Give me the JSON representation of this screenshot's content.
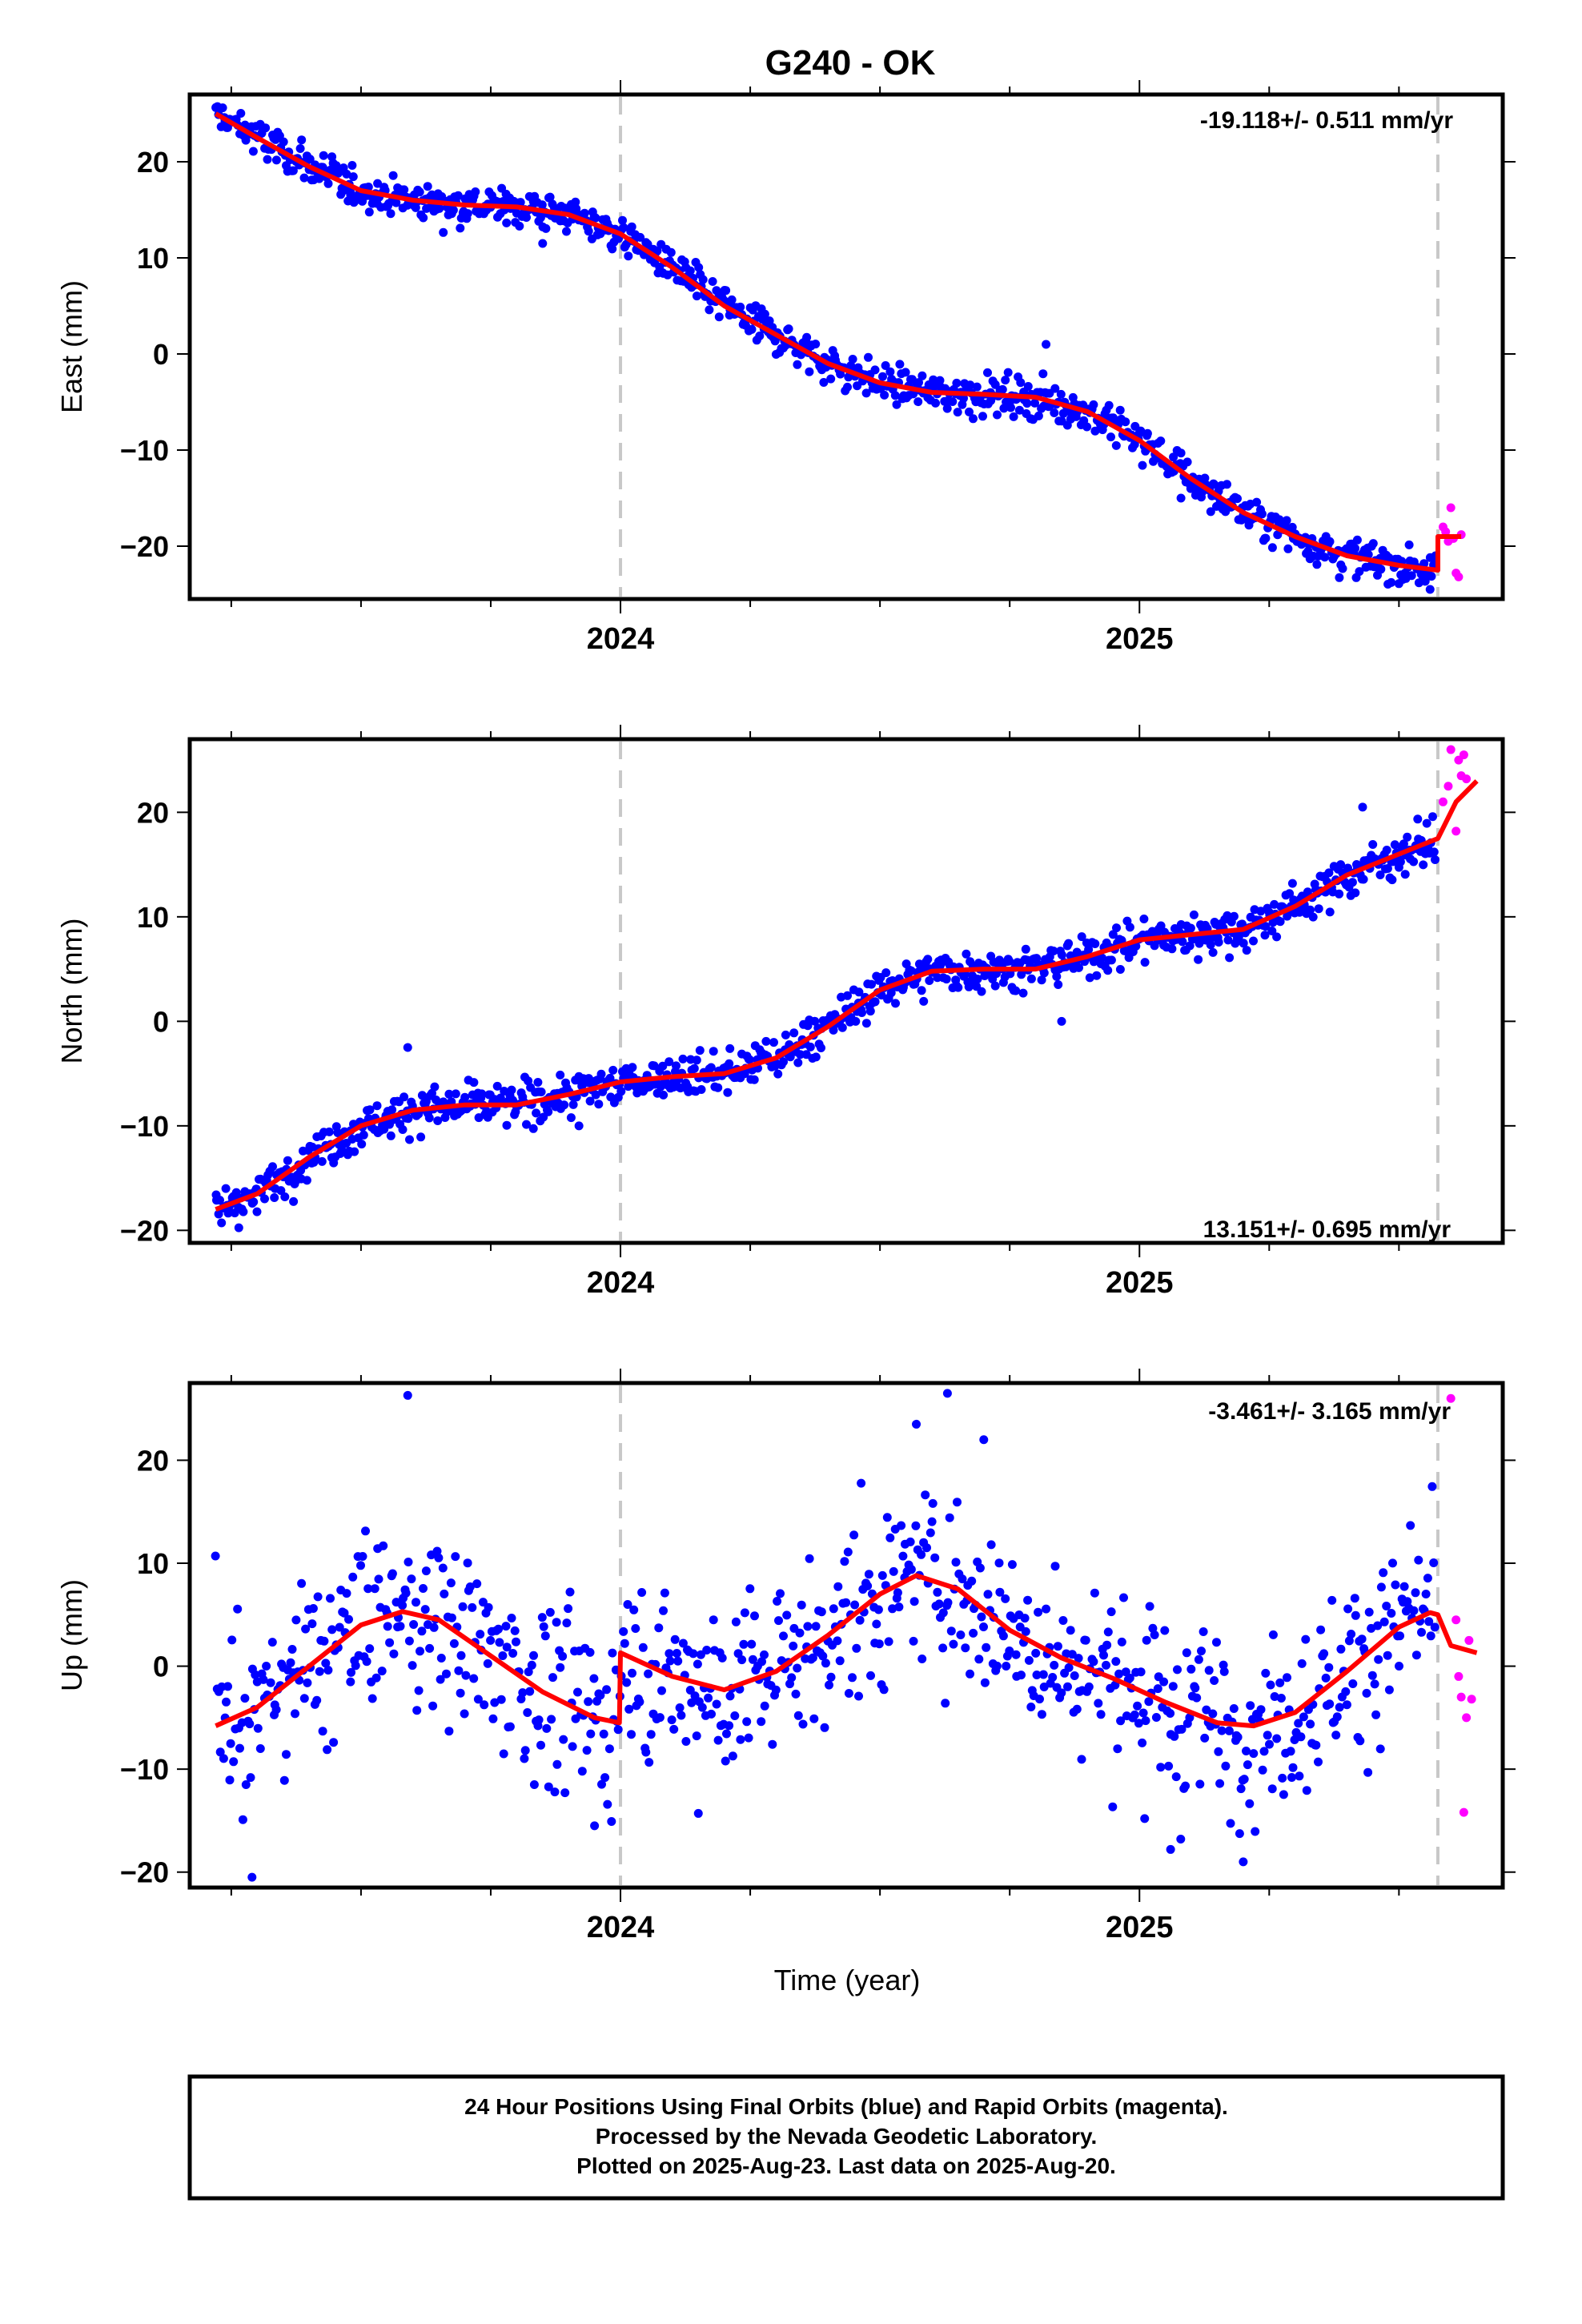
{
  "title": "G240 - OK",
  "xlabel": "Time (year)",
  "footer": {
    "line1": "24 Hour Positions Using Final Orbits (blue) and Rapid Orbits (magenta).",
    "line2": "Processed by the Nevada Geodetic Laboratory.",
    "line3": "Plotted on 2025-Aug-23. Last data on 2025-Aug-20."
  },
  "colors": {
    "final": "#0000ff",
    "rapid": "#ff00ff",
    "model": "#ff0000",
    "marker_line": "#c8c8c8"
  },
  "chart_data": [
    {
      "type": "scatter",
      "panel": "east",
      "ylabel": "East (mm)",
      "rate_label": "-19.118+/- 0.511 mm/yr",
      "xlim": [
        2023.17,
        2025.7
      ],
      "ylim": [
        -25.5,
        27
      ],
      "xticks": [
        2024,
        2025
      ],
      "xtick_labels": [
        "2024",
        "2025"
      ],
      "yticks": [
        -20,
        -10,
        0,
        10,
        20
      ],
      "ytick_labels": [
        "−20",
        "−10",
        "0",
        "10",
        "20"
      ],
      "vlines": [
        2024.0,
        2025.575
      ],
      "model": [
        [
          2023.22,
          25
        ],
        [
          2023.3,
          22.5
        ],
        [
          2023.4,
          19.5
        ],
        [
          2023.5,
          17
        ],
        [
          2023.6,
          16
        ],
        [
          2023.7,
          15.5
        ],
        [
          2023.8,
          15.3
        ],
        [
          2023.9,
          14.5
        ],
        [
          2024.0,
          12.5
        ],
        [
          2024.1,
          9
        ],
        [
          2024.2,
          5
        ],
        [
          2024.3,
          2
        ],
        [
          2024.4,
          -1
        ],
        [
          2024.5,
          -3
        ],
        [
          2024.6,
          -4
        ],
        [
          2024.7,
          -4.2
        ],
        [
          2024.8,
          -4.5
        ],
        [
          2024.9,
          -6
        ],
        [
          2025.0,
          -9
        ],
        [
          2025.1,
          -13
        ],
        [
          2025.2,
          -16.5
        ],
        [
          2025.3,
          -19
        ],
        [
          2025.4,
          -21
        ],
        [
          2025.5,
          -22
        ],
        [
          2025.575,
          -22.5
        ],
        [
          2025.575,
          -19
        ],
        [
          2025.62,
          -19
        ]
      ],
      "outliers": [
        [
          2024.82,
          1
        ],
        [
          2025.08,
          -15
        ],
        [
          2025.56,
          -24.5
        ],
        [
          2023.48,
          16.5
        ],
        [
          2023.85,
          11.5
        ]
      ],
      "rapid": [
        [
          2025.585,
          -18
        ],
        [
          2025.59,
          -18.5
        ],
        [
          2025.595,
          -19.5
        ],
        [
          2025.6,
          -16
        ],
        [
          2025.605,
          -19.2
        ],
        [
          2025.61,
          -22.8
        ],
        [
          2025.615,
          -23.2
        ],
        [
          2025.62,
          -18.8
        ]
      ]
    },
    {
      "type": "scatter",
      "panel": "north",
      "ylabel": "North (mm)",
      "rate_label": "13.151+/- 0.695 mm/yr",
      "xlim": [
        2023.17,
        2025.7
      ],
      "ylim": [
        -21.2,
        27
      ],
      "xticks": [
        2024,
        2025
      ],
      "xtick_labels": [
        "2024",
        "2025"
      ],
      "yticks": [
        -20,
        -10,
        0,
        10,
        20
      ],
      "ytick_labels": [
        "−20",
        "−10",
        "0",
        "10",
        "20"
      ],
      "vlines": [
        2024.0,
        2025.575
      ],
      "model": [
        [
          2023.22,
          -18
        ],
        [
          2023.3,
          -16.5
        ],
        [
          2023.4,
          -13
        ],
        [
          2023.5,
          -10
        ],
        [
          2023.6,
          -8.5
        ],
        [
          2023.7,
          -8
        ],
        [
          2023.8,
          -8
        ],
        [
          2023.9,
          -7
        ],
        [
          2024.0,
          -5.8
        ],
        [
          2024.1,
          -5.3
        ],
        [
          2024.2,
          -5
        ],
        [
          2024.3,
          -3.5
        ],
        [
          2024.4,
          -0.5
        ],
        [
          2024.5,
          3
        ],
        [
          2024.6,
          4.8
        ],
        [
          2024.7,
          5
        ],
        [
          2024.8,
          5
        ],
        [
          2024.9,
          6.2
        ],
        [
          2025.0,
          7.8
        ],
        [
          2025.1,
          8.3
        ],
        [
          2025.2,
          8.8
        ],
        [
          2025.3,
          11
        ],
        [
          2025.4,
          14
        ],
        [
          2025.5,
          16
        ],
        [
          2025.575,
          17.5
        ],
        [
          2025.61,
          21
        ],
        [
          2025.65,
          23
        ]
      ],
      "outliers": [
        [
          2023.59,
          -2.5
        ],
        [
          2025.43,
          20.5
        ],
        [
          2024.85,
          0
        ],
        [
          2023.92,
          -10
        ]
      ],
      "rapid": [
        [
          2025.585,
          21
        ],
        [
          2025.595,
          22.5
        ],
        [
          2025.6,
          26
        ],
        [
          2025.61,
          18.2
        ],
        [
          2025.615,
          25
        ],
        [
          2025.62,
          23.5
        ],
        [
          2025.625,
          25.5
        ],
        [
          2025.63,
          23.2
        ]
      ]
    },
    {
      "type": "scatter",
      "panel": "up",
      "ylabel": "Up (mm)",
      "rate_label": "-3.461+/- 3.165 mm/yr",
      "xlim": [
        2023.17,
        2025.7
      ],
      "ylim": [
        -21.5,
        27.5
      ],
      "xticks": [
        2024,
        2025
      ],
      "xtick_labels": [
        "2024",
        "2025"
      ],
      "yticks": [
        -20,
        -10,
        0,
        10,
        20
      ],
      "ytick_labels": [
        "−20",
        "−10",
        "0",
        "10",
        "20"
      ],
      "vlines": [
        2024.0,
        2025.575
      ],
      "model": [
        [
          2023.22,
          -5.8
        ],
        [
          2023.3,
          -4
        ],
        [
          2023.4,
          0
        ],
        [
          2023.5,
          4
        ],
        [
          2023.58,
          5.3
        ],
        [
          2023.65,
          4.5
        ],
        [
          2023.75,
          1
        ],
        [
          2023.85,
          -2.5
        ],
        [
          2023.95,
          -5
        ],
        [
          2023.998,
          -5.5
        ],
        [
          2024.0,
          1.3
        ],
        [
          2024.1,
          -1
        ],
        [
          2024.2,
          -2.3
        ],
        [
          2024.3,
          -0.5
        ],
        [
          2024.4,
          3
        ],
        [
          2024.5,
          7
        ],
        [
          2024.57,
          8.8
        ],
        [
          2024.65,
          7.5
        ],
        [
          2024.75,
          3.5
        ],
        [
          2024.85,
          0.8
        ],
        [
          2024.95,
          -1.2
        ],
        [
          2025.05,
          -3.5
        ],
        [
          2025.15,
          -5.5
        ],
        [
          2025.22,
          -5.8
        ],
        [
          2025.3,
          -4.5
        ],
        [
          2025.4,
          -0.5
        ],
        [
          2025.5,
          3.8
        ],
        [
          2025.56,
          5.2
        ],
        [
          2025.575,
          5
        ],
        [
          2025.6,
          2
        ],
        [
          2025.65,
          1.3
        ]
      ],
      "outliers": [
        [
          2023.59,
          26.3
        ],
        [
          2024.63,
          26.5
        ],
        [
          2023.29,
          -20.5
        ],
        [
          2023.95,
          -15.5
        ],
        [
          2024.15,
          -14.3
        ],
        [
          2025.06,
          -17.8
        ],
        [
          2025.2,
          -19
        ],
        [
          2024.57,
          23.5
        ],
        [
          2025.01,
          -14.8
        ],
        [
          2024.7,
          22
        ]
      ],
      "rapid": [
        [
          2025.6,
          26
        ],
        [
          2025.61,
          4.5
        ],
        [
          2025.615,
          -1
        ],
        [
          2025.62,
          -3
        ],
        [
          2025.625,
          -14.2
        ],
        [
          2025.63,
          -5
        ],
        [
          2025.635,
          2.5
        ],
        [
          2025.64,
          -3.2
        ]
      ]
    }
  ]
}
